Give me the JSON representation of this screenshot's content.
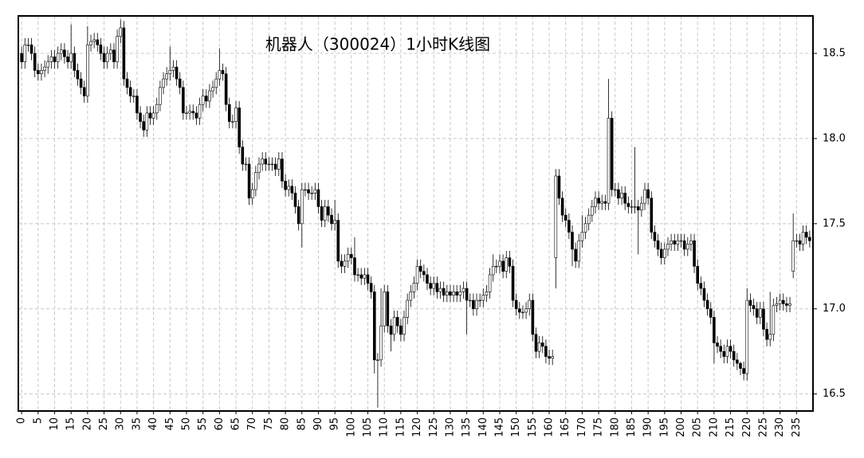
{
  "chart_data": {
    "type": "candlestick",
    "title": "机器人（300024）1小时K线图",
    "x": [
      0,
      1,
      2,
      3,
      4,
      5,
      6,
      7,
      8,
      9,
      10,
      11,
      12,
      13,
      14,
      15,
      16,
      17,
      18,
      19,
      20,
      21,
      22,
      23,
      24,
      25,
      26,
      27,
      28,
      29,
      30,
      31,
      32,
      33,
      34,
      35,
      36,
      37,
      38,
      39,
      40,
      41,
      42,
      43,
      44,
      45,
      46,
      47,
      48,
      49,
      50,
      51,
      52,
      53,
      54,
      55,
      56,
      57,
      58,
      59,
      60,
      61,
      62,
      63,
      64,
      65,
      66,
      67,
      68,
      69,
      70,
      71,
      72,
      73,
      74,
      75,
      76,
      77,
      78,
      79,
      80,
      81,
      82,
      83,
      84,
      85,
      86,
      87,
      88,
      89,
      90,
      91,
      92,
      93,
      94,
      95,
      96,
      97,
      98,
      99,
      100,
      101,
      102,
      103,
      104,
      105,
      106,
      107,
      108,
      109,
      110,
      111,
      112,
      113,
      114,
      115,
      116,
      117,
      118,
      119,
      120,
      121,
      122,
      123,
      124,
      125,
      126,
      127,
      128,
      129,
      130,
      131,
      132,
      133,
      134,
      135,
      136,
      137,
      138,
      139,
      140,
      141,
      142,
      143,
      144,
      145,
      146,
      147,
      148,
      149,
      150,
      151,
      152,
      153,
      154,
      155,
      156,
      157,
      158,
      159,
      160,
      161,
      162,
      163,
      164,
      165,
      166,
      167,
      168,
      169,
      170,
      171,
      172,
      173,
      174,
      175,
      176,
      177,
      178,
      179,
      180,
      181,
      182,
      183,
      184,
      185,
      186,
      187,
      188,
      189,
      190,
      191,
      192,
      193,
      194,
      195,
      196,
      197,
      198,
      199,
      200,
      201,
      202,
      203,
      204,
      205,
      206,
      207,
      208,
      209,
      210,
      211,
      212,
      213,
      214,
      215,
      216,
      217,
      218,
      219,
      220,
      221,
      222,
      223,
      224,
      225,
      226,
      227,
      228,
      229,
      230,
      231,
      232,
      233,
      234,
      235,
      236,
      237,
      238,
      239
    ],
    "open": [
      18.5,
      18.45,
      18.55,
      18.55,
      18.5,
      18.4,
      18.38,
      18.4,
      18.42,
      18.45,
      18.48,
      18.45,
      18.5,
      18.52,
      18.48,
      18.45,
      18.5,
      18.4,
      18.35,
      18.3,
      18.25,
      18.55,
      18.57,
      18.58,
      18.55,
      18.5,
      18.45,
      18.5,
      18.52,
      18.45,
      18.6,
      18.65,
      18.35,
      18.3,
      18.25,
      18.25,
      18.15,
      18.1,
      18.05,
      18.15,
      18.12,
      18.15,
      18.2,
      18.3,
      18.35,
      18.38,
      18.4,
      18.42,
      18.35,
      18.3,
      18.15,
      18.15,
      18.16,
      18.15,
      18.12,
      18.2,
      18.25,
      18.22,
      18.28,
      18.3,
      18.35,
      18.4,
      18.38,
      18.2,
      18.1,
      18.1,
      18.18,
      17.95,
      17.85,
      17.85,
      17.65,
      17.7,
      17.8,
      17.85,
      17.88,
      17.85,
      17.85,
      17.85,
      17.82,
      17.88,
      17.75,
      17.7,
      17.72,
      17.68,
      17.6,
      17.5,
      17.7,
      17.7,
      17.68,
      17.68,
      17.7,
      17.6,
      17.52,
      17.6,
      17.55,
      17.5,
      17.52,
      17.28,
      17.25,
      17.28,
      17.32,
      17.3,
      17.2,
      17.2,
      17.18,
      17.2,
      17.15,
      17.1,
      16.7,
      16.7,
      16.9,
      17.1,
      16.9,
      16.85,
      16.95,
      16.9,
      16.85,
      16.95,
      17.05,
      17.1,
      17.15,
      17.25,
      17.22,
      17.2,
      17.15,
      17.12,
      17.15,
      17.1,
      17.12,
      17.08,
      17.1,
      17.08,
      17.1,
      17.08,
      17.1,
      17.12,
      17.05,
      17.05,
      17.0,
      17.05,
      17.05,
      17.08,
      17.1,
      17.2,
      17.25,
      17.25,
      17.28,
      17.22,
      17.3,
      17.25,
      17.05,
      17.0,
      16.98,
      16.98,
      17.0,
      17.05,
      16.85,
      16.75,
      16.8,
      16.78,
      16.72,
      16.71,
      17.3,
      17.78,
      17.65,
      17.55,
      17.52,
      17.45,
      17.35,
      17.28,
      17.4,
      17.45,
      17.5,
      17.55,
      17.6,
      17.65,
      17.62,
      17.63,
      17.62,
      18.12,
      17.7,
      17.7,
      17.65,
      17.68,
      17.62,
      17.6,
      17.6,
      17.6,
      17.58,
      17.62,
      17.7,
      17.65,
      17.45,
      17.4,
      17.35,
      17.3,
      17.35,
      17.38,
      17.4,
      17.38,
      17.4,
      17.4,
      17.35,
      17.38,
      17.4,
      17.25,
      17.15,
      17.12,
      17.05,
      17.0,
      16.95,
      16.8,
      16.78,
      16.75,
      16.72,
      16.78,
      16.75,
      16.7,
      16.68,
      16.65,
      16.62,
      17.05,
      17.02,
      17.0,
      16.95,
      17.0,
      16.88,
      16.82,
      16.85,
      17.02,
      17.03,
      17.05,
      17.03,
      17.02,
      17.22,
      17.4,
      17.4,
      17.38,
      17.45,
      17.42
    ],
    "high": [
      18.54,
      18.59,
      18.59,
      18.59,
      18.54,
      18.44,
      18.44,
      18.46,
      18.49,
      18.52,
      18.52,
      18.54,
      18.56,
      18.56,
      18.52,
      18.67,
      18.54,
      18.44,
      18.39,
      18.34,
      18.66,
      18.61,
      18.62,
      18.62,
      18.59,
      18.54,
      18.54,
      18.56,
      18.56,
      18.64,
      18.7,
      18.69,
      18.39,
      18.34,
      18.29,
      18.29,
      18.19,
      18.14,
      18.19,
      18.19,
      18.19,
      18.24,
      18.34,
      18.39,
      18.42,
      18.54,
      18.46,
      18.46,
      18.39,
      18.34,
      18.19,
      18.2,
      18.2,
      18.19,
      18.24,
      18.29,
      18.29,
      18.32,
      18.34,
      18.39,
      18.53,
      18.44,
      18.42,
      18.24,
      18.14,
      18.22,
      18.22,
      17.99,
      17.89,
      17.89,
      17.74,
      17.84,
      17.89,
      17.92,
      17.92,
      17.89,
      17.89,
      17.89,
      17.92,
      17.92,
      17.79,
      17.76,
      17.76,
      17.72,
      17.64,
      17.74,
      17.74,
      17.74,
      17.72,
      17.74,
      17.74,
      17.64,
      17.64,
      17.64,
      17.59,
      17.64,
      17.56,
      17.32,
      17.32,
      17.36,
      17.36,
      17.42,
      17.24,
      17.24,
      17.24,
      17.24,
      17.19,
      17.14,
      16.74,
      17.12,
      17.14,
      17.14,
      16.94,
      16.99,
      16.99,
      16.94,
      16.99,
      17.09,
      17.14,
      17.19,
      17.29,
      17.29,
      17.26,
      17.24,
      17.19,
      17.19,
      17.19,
      17.16,
      17.16,
      17.14,
      17.14,
      17.14,
      17.14,
      17.14,
      17.16,
      17.16,
      17.09,
      17.09,
      17.09,
      17.09,
      17.12,
      17.14,
      17.24,
      17.32,
      17.29,
      17.32,
      17.32,
      17.34,
      17.34,
      17.29,
      17.09,
      17.04,
      17.02,
      17.04,
      17.09,
      17.09,
      16.89,
      16.84,
      16.84,
      16.82,
      16.76,
      16.76,
      17.82,
      17.82,
      17.69,
      17.59,
      17.56,
      17.49,
      17.39,
      17.44,
      17.55,
      17.54,
      17.59,
      17.64,
      17.69,
      17.69,
      17.67,
      17.67,
      18.35,
      18.16,
      17.74,
      17.74,
      17.72,
      17.72,
      17.66,
      17.64,
      17.95,
      17.64,
      17.66,
      17.74,
      17.74,
      17.69,
      17.49,
      17.44,
      17.39,
      17.39,
      17.42,
      17.44,
      17.44,
      17.44,
      17.44,
      17.44,
      17.42,
      17.44,
      17.44,
      17.29,
      17.19,
      17.16,
      17.09,
      17.04,
      16.99,
      16.84,
      16.82,
      16.79,
      16.82,
      16.82,
      16.79,
      16.74,
      16.69,
      16.69,
      17.12,
      17.09,
      17.06,
      17.04,
      17.04,
      17.04,
      16.92,
      17.1,
      17.06,
      17.07,
      17.09,
      17.09,
      17.07,
      17.07,
      17.56,
      17.44,
      17.44,
      17.49,
      17.49,
      17.46
    ],
    "low": [
      18.41,
      18.41,
      18.51,
      18.46,
      18.36,
      18.34,
      18.34,
      18.36,
      18.38,
      18.41,
      18.41,
      18.41,
      18.46,
      18.44,
      18.41,
      18.41,
      18.36,
      18.31,
      18.26,
      18.21,
      18.21,
      18.51,
      18.53,
      18.51,
      18.46,
      18.41,
      18.41,
      18.46,
      18.41,
      18.41,
      18.56,
      18.31,
      18.26,
      18.21,
      18.21,
      18.11,
      18.06,
      18.01,
      18.01,
      18.08,
      18.08,
      18.11,
      18.16,
      18.26,
      18.31,
      18.34,
      18.36,
      18.31,
      18.26,
      18.11,
      18.11,
      18.11,
      18.11,
      18.08,
      18.08,
      18.16,
      18.18,
      18.18,
      18.24,
      18.26,
      18.31,
      18.34,
      18.16,
      18.06,
      18.06,
      18.06,
      17.91,
      17.81,
      17.81,
      17.61,
      17.61,
      17.66,
      17.76,
      17.81,
      17.81,
      17.81,
      17.81,
      17.78,
      17.78,
      17.71,
      17.66,
      17.66,
      17.64,
      17.56,
      17.46,
      17.36,
      17.66,
      17.64,
      17.64,
      17.64,
      17.56,
      17.48,
      17.48,
      17.51,
      17.46,
      17.46,
      17.24,
      17.21,
      17.21,
      17.24,
      17.26,
      17.16,
      17.16,
      17.14,
      17.14,
      17.11,
      17.06,
      16.62,
      16.42,
      16.66,
      16.86,
      16.86,
      16.75,
      16.81,
      16.86,
      16.81,
      16.81,
      16.91,
      17.01,
      17.06,
      17.11,
      17.18,
      17.16,
      17.11,
      17.08,
      17.08,
      17.06,
      17.06,
      17.04,
      17.04,
      17.04,
      17.04,
      17.04,
      17.04,
      17.06,
      16.85,
      17.01,
      16.96,
      16.96,
      17.01,
      17.01,
      17.04,
      17.06,
      17.16,
      17.21,
      17.21,
      17.18,
      17.18,
      17.21,
      17.01,
      16.96,
      16.94,
      16.94,
      16.94,
      16.96,
      16.81,
      16.71,
      16.71,
      16.74,
      16.68,
      16.67,
      16.67,
      17.12,
      17.61,
      17.51,
      17.48,
      17.41,
      17.25,
      17.24,
      17.24,
      17.36,
      17.41,
      17.46,
      17.51,
      17.56,
      17.58,
      17.58,
      17.58,
      17.58,
      17.66,
      17.66,
      17.61,
      17.61,
      17.58,
      17.56,
      17.56,
      17.56,
      17.32,
      17.54,
      17.58,
      17.61,
      17.41,
      17.36,
      17.31,
      17.26,
      17.26,
      17.31,
      17.34,
      17.34,
      17.34,
      17.36,
      17.31,
      17.31,
      17.34,
      17.21,
      17.11,
      17.08,
      17.01,
      16.96,
      16.91,
      16.68,
      16.74,
      16.71,
      16.68,
      16.68,
      16.71,
      16.66,
      16.64,
      16.61,
      16.58,
      16.58,
      16.98,
      16.96,
      16.91,
      16.91,
      16.84,
      16.78,
      16.78,
      16.81,
      16.98,
      16.99,
      16.99,
      16.98,
      16.98,
      17.18,
      17.36,
      17.34,
      17.34,
      17.38,
      17.36
    ],
    "close": [
      18.45,
      18.55,
      18.55,
      18.5,
      18.4,
      18.38,
      18.4,
      18.42,
      18.45,
      18.48,
      18.45,
      18.5,
      18.52,
      18.48,
      18.45,
      18.5,
      18.4,
      18.35,
      18.3,
      18.25,
      18.55,
      18.57,
      18.58,
      18.55,
      18.5,
      18.45,
      18.5,
      18.52,
      18.45,
      18.6,
      18.65,
      18.35,
      18.3,
      18.25,
      18.25,
      18.15,
      18.1,
      18.05,
      18.15,
      18.12,
      18.15,
      18.2,
      18.3,
      18.35,
      18.38,
      18.4,
      18.42,
      18.35,
      18.3,
      18.15,
      18.15,
      18.16,
      18.15,
      18.12,
      18.2,
      18.25,
      18.22,
      18.28,
      18.3,
      18.35,
      18.4,
      18.38,
      18.2,
      18.1,
      18.1,
      18.18,
      17.95,
      17.85,
      17.85,
      17.65,
      17.7,
      17.8,
      17.85,
      17.88,
      17.85,
      17.85,
      17.85,
      17.82,
      17.88,
      17.75,
      17.7,
      17.72,
      17.68,
      17.6,
      17.5,
      17.7,
      17.7,
      17.68,
      17.68,
      17.7,
      17.6,
      17.52,
      17.6,
      17.55,
      17.5,
      17.52,
      17.28,
      17.25,
      17.28,
      17.32,
      17.3,
      17.2,
      17.2,
      17.18,
      17.2,
      17.15,
      17.1,
      16.7,
      16.7,
      16.9,
      17.1,
      16.9,
      16.85,
      16.95,
      16.9,
      16.85,
      16.95,
      17.05,
      17.1,
      17.15,
      17.25,
      17.22,
      17.2,
      17.15,
      17.12,
      17.15,
      17.1,
      17.12,
      17.08,
      17.1,
      17.08,
      17.1,
      17.08,
      17.1,
      17.12,
      17.05,
      17.05,
      17.0,
      17.05,
      17.05,
      17.08,
      17.1,
      17.2,
      17.25,
      17.25,
      17.28,
      17.22,
      17.3,
      17.25,
      17.05,
      17.0,
      16.98,
      16.98,
      17.0,
      17.05,
      16.85,
      16.75,
      16.8,
      16.78,
      16.72,
      16.71,
      16.72,
      17.78,
      17.65,
      17.55,
      17.52,
      17.45,
      17.35,
      17.28,
      17.4,
      17.45,
      17.5,
      17.55,
      17.6,
      17.65,
      17.62,
      17.63,
      17.62,
      18.12,
      17.7,
      17.7,
      17.65,
      17.68,
      17.62,
      17.6,
      17.6,
      17.6,
      17.58,
      17.62,
      17.7,
      17.65,
      17.45,
      17.4,
      17.35,
      17.3,
      17.35,
      17.38,
      17.4,
      17.38,
      17.4,
      17.4,
      17.35,
      17.38,
      17.4,
      17.25,
      17.15,
      17.12,
      17.05,
      17.0,
      16.95,
      16.8,
      16.78,
      16.75,
      16.72,
      16.78,
      16.75,
      16.7,
      16.68,
      16.65,
      16.62,
      17.05,
      17.02,
      17.0,
      16.95,
      17.0,
      16.88,
      16.82,
      16.85,
      17.02,
      17.03,
      17.05,
      17.03,
      17.02,
      17.03,
      17.4,
      17.4,
      17.38,
      17.45,
      17.42,
      17.4
    ],
    "up_color": "#ffffff",
    "down_color": "#000000",
    "edge_color": "#000000",
    "xlim": [
      -1,
      240
    ],
    "xticks": [
      0,
      5,
      10,
      15,
      20,
      25,
      30,
      35,
      40,
      45,
      50,
      55,
      60,
      65,
      70,
      75,
      80,
      85,
      90,
      95,
      100,
      105,
      110,
      115,
      120,
      125,
      130,
      135,
      140,
      145,
      150,
      155,
      160,
      165,
      170,
      175,
      180,
      185,
      190,
      195,
      200,
      205,
      210,
      215,
      220,
      225,
      230,
      235
    ],
    "ylim": [
      16.4,
      18.72
    ],
    "yticks": [
      16.5,
      {
        "value": 17,
        "label": "17.0"
      },
      17.5,
      {
        "value": 18,
        "label": "18.0"
      },
      18.5
    ],
    "grid": true,
    "y_axis_side": "right"
  }
}
